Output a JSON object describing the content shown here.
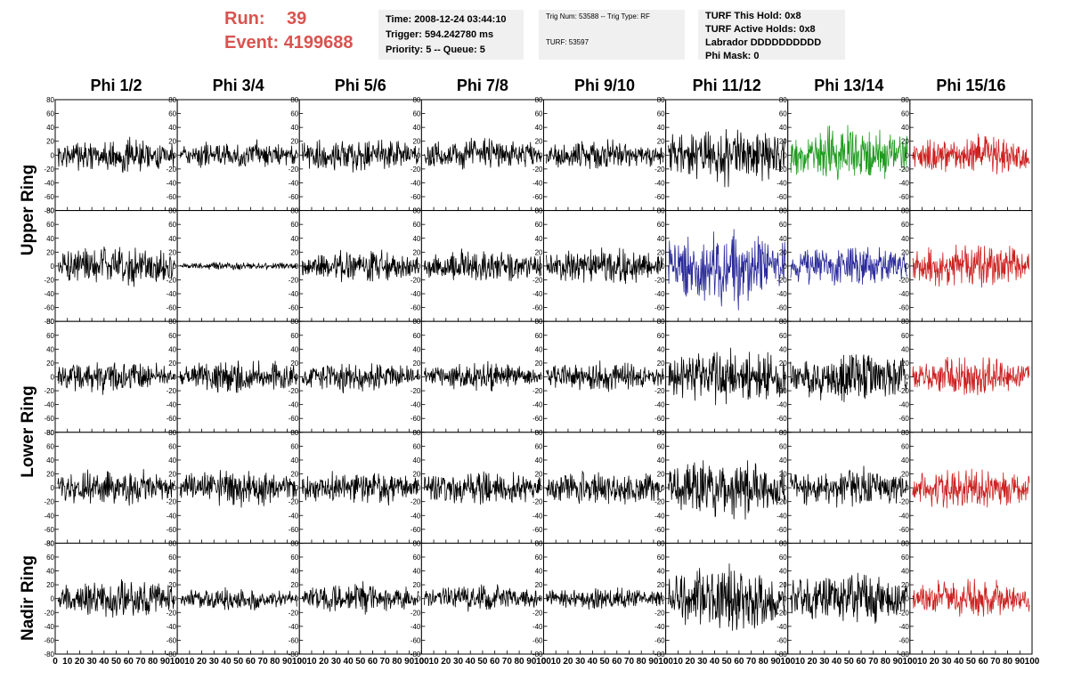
{
  "header": {
    "run_label": "Run:",
    "run_value": "39",
    "event_label": "Event:",
    "event_value": "4199688"
  },
  "info_time": {
    "time": "Time: 2008-12-24 03:44:10",
    "trigger": "Trigger: 594.242780 ms",
    "priority": "Priority: 5 -- Queue: 5"
  },
  "info_trig": {
    "trig": "Trig Num: 53588 -- Trig Type: RF",
    "turf": "TURF: 53597"
  },
  "info_turf": {
    "this_hold": "TURF This Hold: 0x8",
    "active_holds": "TURF Active Holds: 0x8",
    "labrador": "Labrador DDDDDDDDDD",
    "phi_mask": "Phi Mask: 0"
  },
  "colors": {
    "default": "#000000",
    "green": "#1f9a1f",
    "blue": "#2a2a9a",
    "red": "#cc2020"
  },
  "chart_data": {
    "type": "line",
    "columns": [
      "Phi 1/2",
      "Phi 3/4",
      "Phi 5/6",
      "Phi 7/8",
      "Phi 9/10",
      "Phi 11/12",
      "Phi 13/14",
      "Phi 15/16"
    ],
    "rows": [
      "Upper Ring",
      "Upper Ring",
      "Lower Ring",
      "Lower Ring",
      "Nadir Ring"
    ],
    "ring_labels": [
      "Upper Ring",
      "Lower Ring",
      "Nadir Ring"
    ],
    "ylim": [
      -80,
      80
    ],
    "y_ticks": [
      -80,
      -60,
      -40,
      -20,
      0,
      20,
      40,
      60,
      80
    ],
    "x_ticks": [
      0,
      10,
      20,
      30,
      40,
      50,
      60,
      70,
      80,
      90,
      100
    ],
    "xlim": [
      0,
      100
    ],
    "samples_per_trace": 256,
    "amplitude": [
      [
        14,
        11,
        14,
        13,
        12,
        24,
        22,
        16
      ],
      [
        16,
        3,
        12,
        13,
        14,
        30,
        16,
        18
      ],
      [
        13,
        13,
        12,
        11,
        12,
        22,
        21,
        16
      ],
      [
        15,
        15,
        14,
        14,
        14,
        24,
        16,
        17
      ],
      [
        15,
        10,
        12,
        11,
        9,
        24,
        20,
        15
      ]
    ],
    "color_keys": [
      [
        "default",
        "default",
        "default",
        "default",
        "default",
        "default",
        "green",
        "red"
      ],
      [
        "default",
        "default",
        "default",
        "default",
        "default",
        "blue",
        "blue",
        "red"
      ],
      [
        "default",
        "default",
        "default",
        "default",
        "default",
        "default",
        "default",
        "red"
      ],
      [
        "default",
        "default",
        "default",
        "default",
        "default",
        "default",
        "default",
        "red"
      ],
      [
        "default",
        "default",
        "default",
        "default",
        "default",
        "default",
        "default",
        "red"
      ]
    ]
  }
}
